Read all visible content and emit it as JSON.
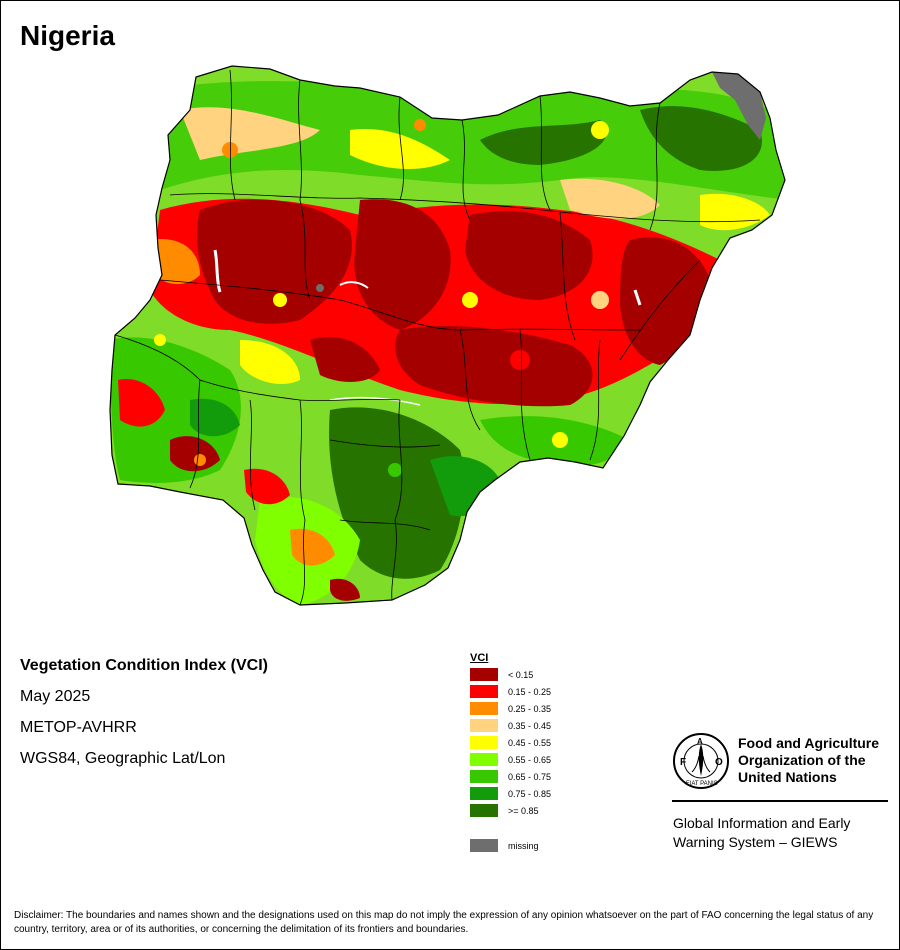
{
  "map": {
    "country": "Nigeria",
    "index_title": "Vegetation Condition Index (VCI)",
    "period": "May 2025",
    "sensor": "METOP-AVHRR",
    "projection": "WGS84, Geographic Lat/Lon"
  },
  "legend": {
    "title": "VCI",
    "classes": [
      {
        "label": "< 0.15",
        "color": "#a50000"
      },
      {
        "label": "0.15 - 0.25",
        "color": "#ff0000"
      },
      {
        "label": "0.25 - 0.35",
        "color": "#ff8c00"
      },
      {
        "label": "0.35 - 0.45",
        "color": "#ffd37f"
      },
      {
        "label": "0.45 - 0.55",
        "color": "#ffff00"
      },
      {
        "label": "0.55 - 0.65",
        "color": "#80ff00"
      },
      {
        "label": "0.65 - 0.75",
        "color": "#38c800"
      },
      {
        "label": "0.75 - 0.85",
        "color": "#129b0a"
      },
      {
        "label": ">= 0.85",
        "color": "#267300"
      }
    ],
    "missing": {
      "label": "missing",
      "color": "#6e6e6e"
    }
  },
  "organization": {
    "name_lines": [
      "Food and Agriculture",
      "Organization of the",
      "United Nations"
    ],
    "logo_letters": "FAO",
    "logo_motto": "FIAT PANIS",
    "program_lines": [
      "Global Information and Early",
      "Warning System – GIEWS"
    ]
  },
  "disclaimer": "Disclaimer: The boundaries and names shown and the designations used on this map do not imply the expression of any opinion whatsoever on the part of FAO concerning the legal status of any country, territory, area or of its authorities, or concerning the delimitation of its frontiers and boundaries."
}
